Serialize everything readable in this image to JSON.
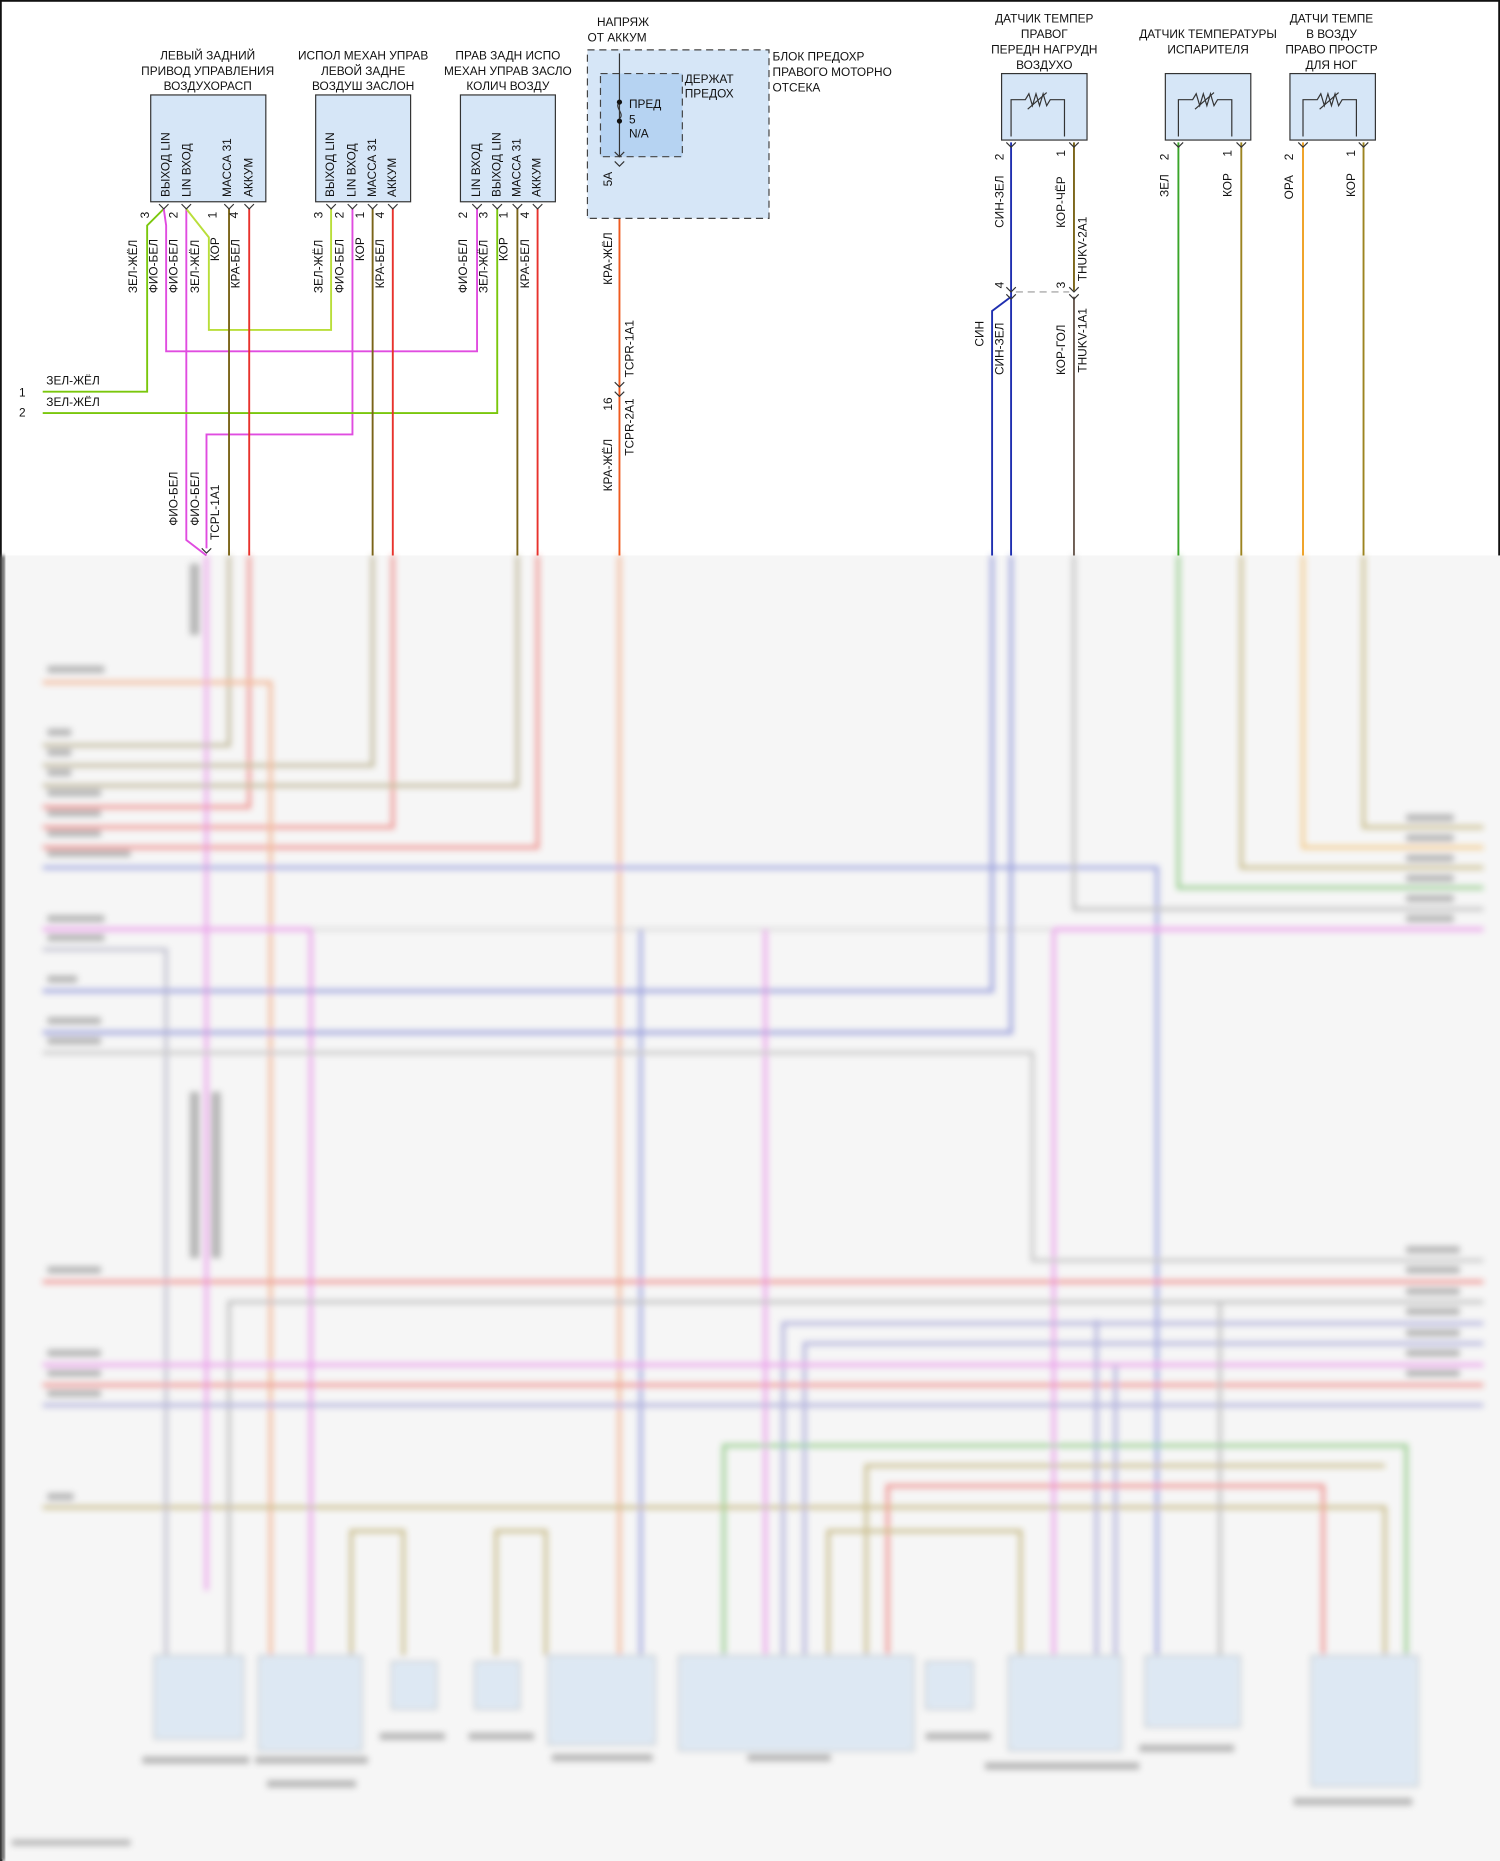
{
  "components": {
    "left_rear_actuator": {
      "title": [
        "ЛЕВЫЙ ЗАДНИЙ",
        "ПРИВОД УПРАВЛЕНИЯ",
        "ВОЗДУХОРАСП"
      ],
      "pins": [
        {
          "num": "3",
          "label": "ВЫХОД LIN",
          "wire": "ЗЕЛ-ЖЁЛ",
          "wire2": "ФИО-БЕЛ"
        },
        {
          "num": "2",
          "label": "LIN ВХОД",
          "wire": "ФИО-БЕЛ",
          "wire2": "ЗЕЛ-ЖЁЛ"
        },
        {
          "num": "1",
          "label": "МАССА 31",
          "wire": "КОР"
        },
        {
          "num": "4",
          "label": "АККУМ",
          "wire": "КРА-БЕЛ"
        }
      ]
    },
    "left_rear_damper": {
      "title": [
        "ИСПОЛ МЕХАН УПРАВ",
        "ЛЕВОЙ ЗАДНЕ",
        "ВОЗДУШ ЗАСЛОН"
      ],
      "pins": [
        {
          "num": "3",
          "label": "ВЫХОД LIN",
          "wire": "ЗЕЛ-ЖЁЛ"
        },
        {
          "num": "2",
          "label": "LIN ВХОД",
          "wire": "ФИО-БЕЛ"
        },
        {
          "num": "1",
          "label": "МАССА 31",
          "wire": "КОР"
        },
        {
          "num": "4",
          "label": "АККУМ",
          "wire": "КРА-БЕЛ"
        }
      ]
    },
    "right_rear_damper": {
      "title": [
        "ПРАВ ЗАДН ИСПО",
        "МЕХАН УПРАВ ЗАСЛО",
        "КОЛИЧ ВОЗДУ"
      ],
      "pins": [
        {
          "num": "2",
          "label": "LIN ВХОД",
          "wire": "ФИО-БЕЛ"
        },
        {
          "num": "3",
          "label": "ВЫХОД LIN",
          "wire": "ЗЕЛ-ЖЁЛ"
        },
        {
          "num": "1",
          "label": "МАССА 31",
          "wire": "КОР"
        },
        {
          "num": "4",
          "label": "АККУМ",
          "wire": "КРА-БЕЛ"
        }
      ]
    },
    "fuse_block": {
      "supply": [
        "НАПРЯЖ",
        "ОТ АККУМ"
      ],
      "title": [
        "БЛОК ПРЕДОХР",
        "ПРАВОГО МОТОРНО",
        "ОТСЕКА"
      ],
      "holder": [
        "ДЕРЖАТ",
        "ПРЕДОХ"
      ],
      "fuse": [
        "ПРЕД",
        "5",
        "N/A"
      ],
      "pin": "5A",
      "wire": "КРА-ЖЁЛ",
      "connector_top": "TCPR-1A1",
      "connector_bottom": "TCPR-2A1",
      "connector_pin": "16",
      "wire_below": "КРА-ЖЁЛ"
    },
    "right_front_chest_sensor": {
      "title": [
        "ДАТЧИК ТЕМПЕР",
        "ПРАВОГ",
        "ПЕРЕДН НАГРУДН",
        "ВОЗДУХО"
      ],
      "pins": [
        {
          "num": "2",
          "wire": "СИН-ЗЕЛ"
        },
        {
          "num": "1",
          "wire": "КОР-ЧЁР"
        }
      ],
      "connector_top": "THUKV-2A1",
      "connector_bottom": "THUKV-1A1",
      "connector_pins": [
        "4",
        "3"
      ],
      "wires_below": [
        "СИН",
        "СИН-ЗЕЛ",
        "КОР-ГОЛ"
      ]
    },
    "evaporator_sensor": {
      "title": [
        "ДАТЧИК ТЕМПЕРАТУРЫ",
        "ИСПАРИТЕЛЯ"
      ],
      "pins": [
        {
          "num": "2",
          "wire": "ЗЕЛ"
        },
        {
          "num": "1",
          "wire": "КОР"
        }
      ]
    },
    "right_footwell_sensor": {
      "title": [
        "ДАТЧИ ТЕМПЕ",
        "В ВОЗДУ",
        "ПРАВО ПРОСТР",
        "ДЛЯ НОГ"
      ],
      "pins": [
        {
          "num": "2",
          "wire": "ОРА"
        },
        {
          "num": "1",
          "wire": "КОР"
        }
      ]
    }
  },
  "left_inputs": [
    {
      "num": "1",
      "wire": "ЗЕЛ-ЖЁЛ"
    },
    {
      "num": "2",
      "wire": "ЗЕЛ-ЖЁЛ"
    }
  ],
  "tcpl": {
    "connector": "TCPL-1A1",
    "wires": [
      "ФИО-БЕЛ",
      "ФИО-БЕЛ"
    ]
  },
  "colors": {
    "green_yellow": "#7ac70c",
    "violet_white": "#e04ce0",
    "brown": "#7a6418",
    "red_white": "#e8322c",
    "red_yellow": "#ef5a1e",
    "blue": "#1f2fb0",
    "green": "#3aa52a",
    "orange": "#f0a020",
    "olive": "#9c8420",
    "box_fill": "#d6e6f7",
    "fuse_fill": "#b6d3f2"
  },
  "lower_section_state": "blurred"
}
